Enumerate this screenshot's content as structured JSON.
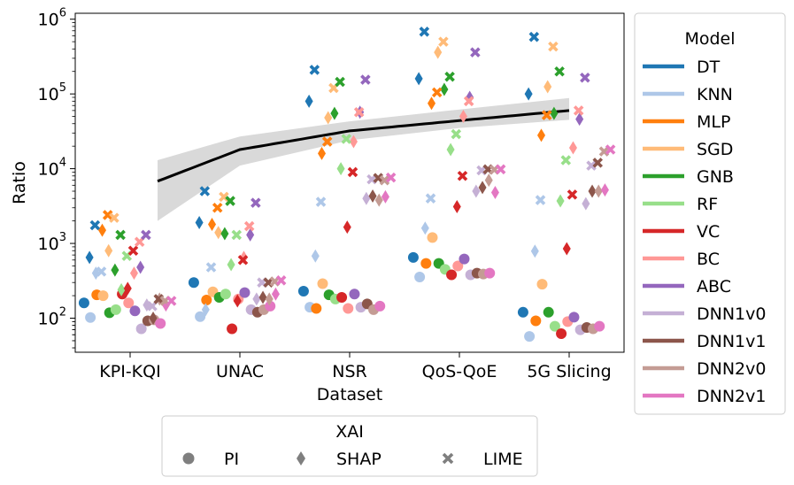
{
  "chart_data": {
    "type": "scatter",
    "xlabel": "Dataset",
    "ylabel": "Ratio",
    "y_scale": "log",
    "ylim": [
      35,
      1200000
    ],
    "categories": [
      "KPI-KQI",
      "UNAC",
      "NSR",
      "QoS-QoE",
      "5G Slicing"
    ],
    "y_ticks": [
      {
        "value": 100,
        "base": "10",
        "exp": "2"
      },
      {
        "value": 1000,
        "base": "10",
        "exp": "3"
      },
      {
        "value": 10000,
        "base": "10",
        "exp": "4"
      },
      {
        "value": 100000,
        "base": "10",
        "exp": "5"
      },
      {
        "value": 1000000,
        "base": "10",
        "exp": "6"
      }
    ],
    "models": [
      {
        "name": "DT",
        "color": "#1f77b4"
      },
      {
        "name": "KNN",
        "color": "#aec7e8"
      },
      {
        "name": "MLP",
        "color": "#ff7f0e"
      },
      {
        "name": "SGD",
        "color": "#ffbb78"
      },
      {
        "name": "GNB",
        "color": "#2ca02c"
      },
      {
        "name": "RF",
        "color": "#98df8a"
      },
      {
        "name": "VC",
        "color": "#d62728"
      },
      {
        "name": "BC",
        "color": "#ff9896"
      },
      {
        "name": "ABC",
        "color": "#9467bd"
      },
      {
        "name": "DNN1v0",
        "color": "#c5b0d5"
      },
      {
        "name": "DNN1v1",
        "color": "#8c564b"
      },
      {
        "name": "DNN2v0",
        "color": "#c49c94"
      },
      {
        "name": "DNN2v1",
        "color": "#e377c2"
      }
    ],
    "xai_methods": [
      {
        "name": "PI",
        "marker": "circle"
      },
      {
        "name": "SHAP",
        "marker": "diamond"
      },
      {
        "name": "LIME",
        "marker": "x"
      }
    ],
    "legend_model_title": "Model",
    "legend_xai_title": "XAI",
    "legend_model_placement": "outside-right",
    "legend_xai_placement": "bottom-center",
    "grid": false,
    "series": [
      {
        "dataset": "KPI-KQI",
        "PI": [
          160,
          102,
          205,
          200,
          118,
          130,
          210,
          160,
          125,
          72,
          92,
          95,
          85
        ],
        "SHAP": [
          650,
          400,
          1500,
          800,
          440,
          240,
          250,
          400,
          480,
          150,
          100,
          180,
          150
        ],
        "LIME": [
          1750,
          420,
          2400,
          2200,
          1300,
          680,
          800,
          1050,
          1300,
          145,
          180,
          170,
          170
        ]
      },
      {
        "dataset": "UNAC",
        "PI": [
          300,
          105,
          175,
          225,
          190,
          210,
          72,
          180,
          220,
          130,
          120,
          130,
          145
        ],
        "SHAP": [
          1900,
          130,
          1800,
          1400,
          1350,
          520,
          170,
          650,
          1300,
          180,
          190,
          180,
          210
        ],
        "LIME": [
          5000,
          480,
          3000,
          4200,
          3700,
          1300,
          600,
          1700,
          3500,
          300,
          300,
          310,
          320
        ]
      },
      {
        "dataset": "NSR",
        "PI": [
          230,
          140,
          135,
          290,
          205,
          180,
          190,
          135,
          210,
          140,
          155,
          130,
          145
        ],
        "SHAP": [
          80000,
          680,
          16000,
          48000,
          55000,
          10000,
          1650,
          23000,
          57000,
          4000,
          4300,
          3800,
          4200
        ],
        "LIME": [
          210000,
          3600,
          23000,
          120000,
          145000,
          25000,
          9000,
          57000,
          155000,
          7200,
          7500,
          7000,
          7600
        ]
      },
      {
        "dataset": "QoS-QoE",
        "PI": [
          650,
          355,
          540,
          1200,
          540,
          450,
          380,
          500,
          620,
          380,
          400,
          390,
          400
        ],
        "SHAP": [
          160000,
          1600,
          75000,
          360000,
          115000,
          18000,
          3100,
          50000,
          90000,
          5000,
          5600,
          7000,
          4800
        ],
        "LIME": [
          680000,
          4000,
          105000,
          500000,
          170000,
          29000,
          8000,
          80000,
          360000,
          9500,
          9800,
          9700,
          9800
        ]
      },
      {
        "dataset": "5G Slicing",
        "PI": [
          120,
          57,
          92,
          285,
          120,
          78,
          62,
          90,
          103,
          70,
          75,
          72,
          78
        ],
        "SHAP": [
          100000,
          790,
          28000,
          125000,
          55000,
          3700,
          850,
          19000,
          46000,
          3400,
          5000,
          5000,
          5200
        ],
        "LIME": [
          580000,
          3800,
          52000,
          430000,
          200000,
          13000,
          4500,
          60000,
          165000,
          11000,
          12000,
          17000,
          18000
        ]
      }
    ],
    "trend": {
      "name": "",
      "x": [
        0.75,
        1.5,
        2.5,
        3.5,
        4.5
      ],
      "y": [
        6800,
        18000,
        32000,
        44000,
        60000
      ],
      "ci_lower": [
        2000,
        11000,
        24000,
        35000,
        45000
      ],
      "ci_upper": [
        13000,
        27000,
        43000,
        62000,
        88000
      ],
      "color": "#000000",
      "band_color": "#d9d9d9"
    }
  }
}
